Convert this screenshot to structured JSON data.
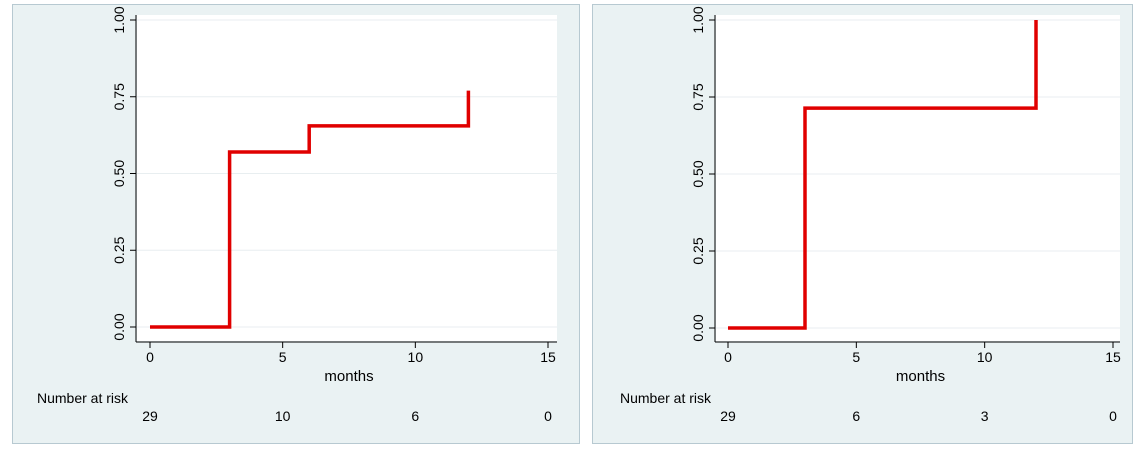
{
  "chart_data": [
    {
      "type": "line",
      "step": true,
      "xlabel": "months",
      "ylabel": "",
      "xlim": [
        0,
        15
      ],
      "ylim": [
        0,
        1
      ],
      "x_ticks": [
        "0",
        "5",
        "10",
        "15"
      ],
      "y_ticks": [
        "0.00",
        "0.25",
        "0.50",
        "0.75",
        "1.00"
      ],
      "grid": true,
      "line_color": "#e00000",
      "series": [
        {
          "x": [
            0,
            3,
            3,
            6,
            6,
            12,
            12
          ],
          "y": [
            0,
            0,
            0.57,
            0.57,
            0.655,
            0.655,
            0.77
          ]
        }
      ],
      "risk_table": {
        "label": "Number at risk",
        "times": [
          0,
          5,
          10,
          15
        ],
        "values": [
          "29",
          "10",
          "6",
          "0"
        ]
      }
    },
    {
      "type": "line",
      "step": true,
      "xlabel": "months",
      "ylabel": "",
      "xlim": [
        0,
        15
      ],
      "ylim": [
        0,
        1
      ],
      "x_ticks": [
        "0",
        "5",
        "10",
        "15"
      ],
      "y_ticks": [
        "0.00",
        "0.25",
        "0.50",
        "0.75",
        "1.00"
      ],
      "grid": true,
      "line_color": "#e00000",
      "series": [
        {
          "x": [
            0,
            3,
            3,
            12,
            12
          ],
          "y": [
            0,
            0,
            0.714,
            0.714,
            1.0
          ]
        }
      ],
      "risk_table": {
        "label": "Number at risk",
        "times": [
          0,
          5,
          10,
          15
        ],
        "values": [
          "29",
          "6",
          "3",
          "0"
        ]
      }
    }
  ]
}
